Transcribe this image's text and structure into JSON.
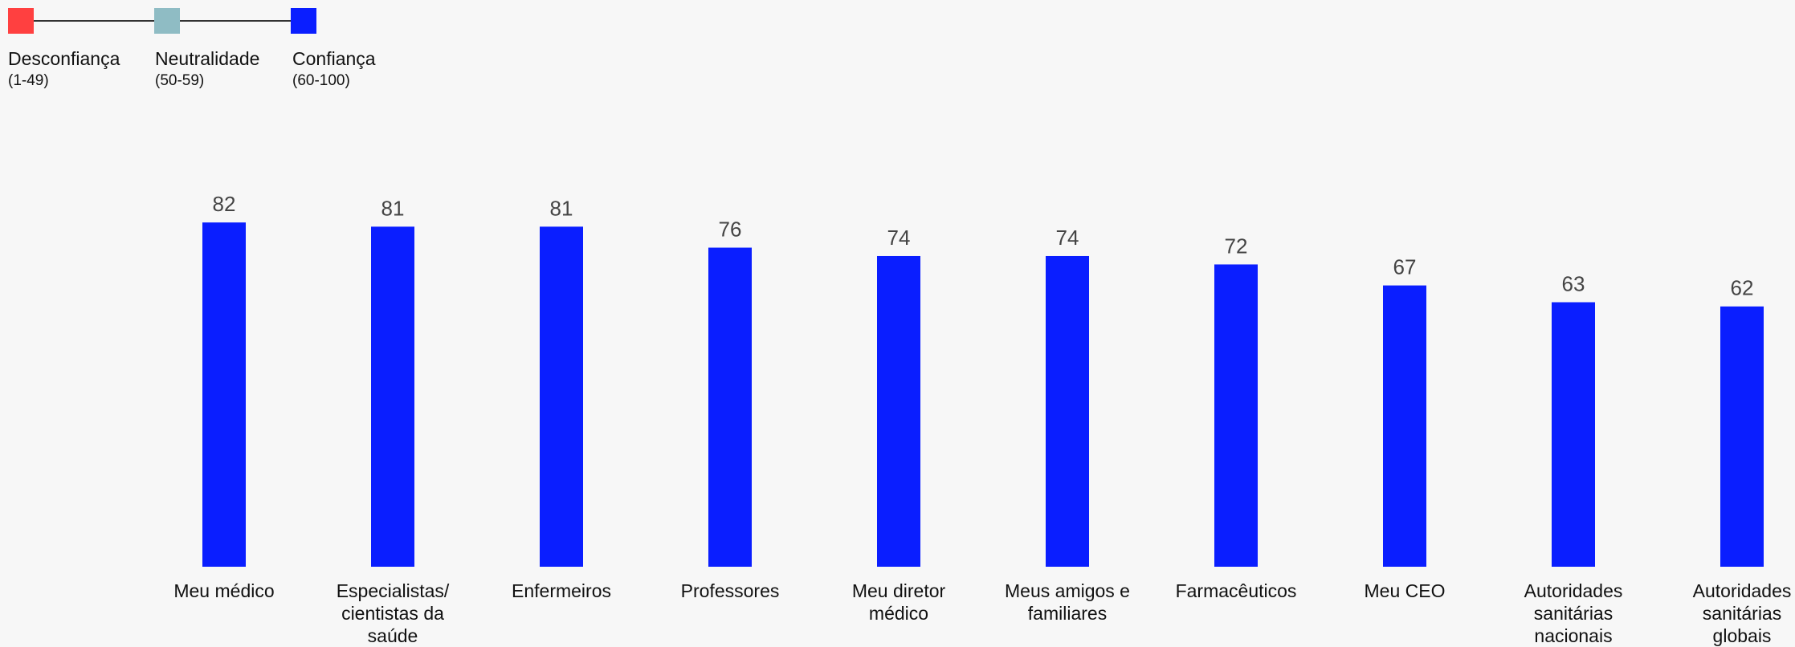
{
  "legend": [
    {
      "label": "Desconfiança",
      "range": "(1-49)",
      "color": "#ff4040"
    },
    {
      "label": "Neutralidade",
      "range": "(50-59)",
      "color": "#8fbcc4"
    },
    {
      "label": "Confiança",
      "range": "(60-100)",
      "color": "#0a1eff"
    }
  ],
  "chart_data": {
    "type": "bar",
    "title": "",
    "xlabel": "",
    "ylabel": "",
    "categories": [
      "Meu médico",
      "Especialistas/ cientistas da saúde",
      "Enfermeiros",
      "Professores",
      "Meu diretor médico",
      "Meus amigos e familiares",
      "Farmacêuticos",
      "Meu CEO",
      "Autoridades sanitárias nacionais",
      "Autoridades sanitárias globais"
    ],
    "values": [
      82,
      81,
      81,
      76,
      74,
      74,
      72,
      67,
      63,
      62
    ],
    "bar_color": "#0a1eff",
    "ylim": [
      0,
      100
    ],
    "grid": false,
    "legend_position": "top-left",
    "data_labels": true
  }
}
